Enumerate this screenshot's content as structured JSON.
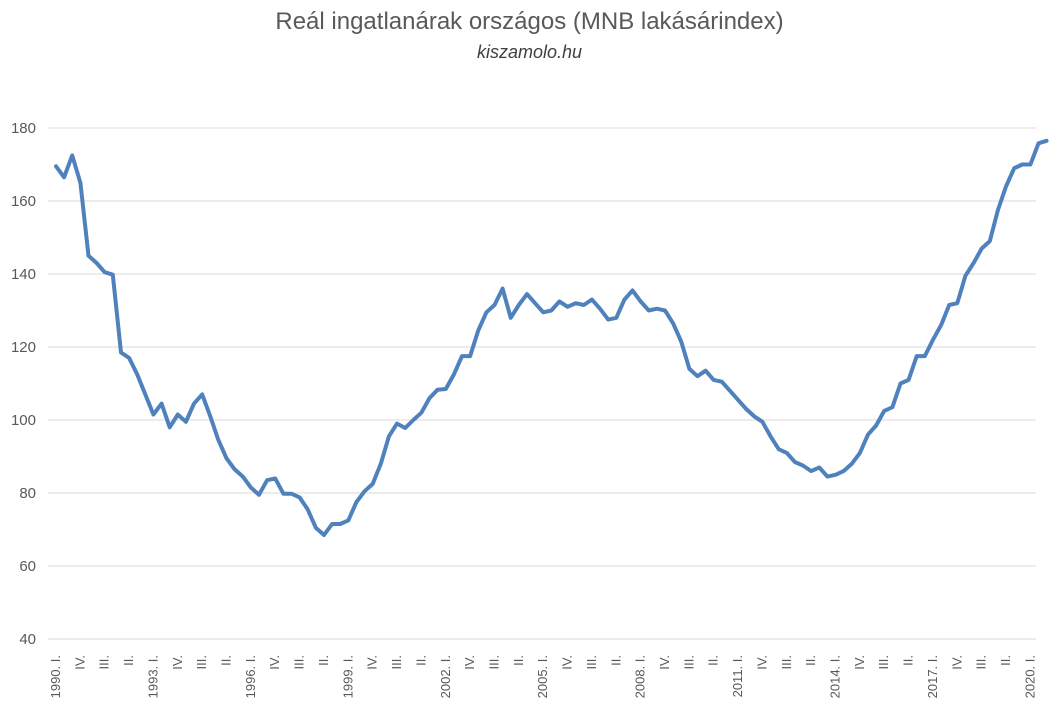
{
  "title": "Reál ingatlanárak országos (MNB lakásárindex)",
  "subtitle": "kiszamolo.hu",
  "chart_data": {
    "type": "line",
    "ylim": [
      40,
      180
    ],
    "yticks": [
      40,
      60,
      80,
      100,
      120,
      140,
      160,
      180
    ],
    "grid": true,
    "line_color": "#4F81BD",
    "grid_color": "#D9D9D9",
    "x_tick_labels": [
      "1990. I.",
      "IV.",
      "III.",
      "II.",
      "1993. I.",
      "IV.",
      "III.",
      "II.",
      "1996. I.",
      "IV.",
      "III.",
      "II.",
      "1999. I.",
      "IV.",
      "III.",
      "II.",
      "2002. I.",
      "IV.",
      "III.",
      "II.",
      "2005. I.",
      "IV.",
      "III.",
      "II.",
      "2008. I.",
      "IV.",
      "III.",
      "II.",
      "2011. I.",
      "IV.",
      "III.",
      "II.",
      "2014. I.",
      "IV.",
      "III.",
      "II.",
      "2017. I.",
      "IV.",
      "III.",
      "II.",
      "2020. I."
    ],
    "series": [
      {
        "values": [
          169.5,
          166.5,
          172.5,
          165.0,
          145.0,
          143.0,
          140.5,
          139.8,
          118.5,
          117.0,
          112.5,
          107.0,
          101.5,
          104.5,
          98.0,
          101.5,
          99.5,
          104.5,
          107.0,
          101.0,
          94.5,
          89.5,
          86.5,
          84.5,
          81.5,
          79.5,
          83.5,
          84.0,
          79.8,
          79.8,
          78.8,
          75.5,
          70.5,
          68.5,
          71.5,
          71.5,
          72.5,
          77.5,
          80.5,
          82.5,
          88.0,
          95.5,
          99.0,
          97.8,
          100.0,
          102.0,
          106.0,
          108.3,
          108.5,
          112.5,
          117.5,
          117.5,
          124.5,
          129.5,
          131.5,
          136.0,
          128.0,
          131.5,
          134.5,
          132.0,
          129.5,
          130.0,
          132.5,
          131.0,
          132.0,
          131.5,
          133.0,
          130.5,
          127.5,
          128.0,
          133.0,
          135.5,
          132.5,
          130.0,
          130.5,
          130.0,
          126.5,
          121.5,
          114.0,
          112.0,
          113.5,
          111.0,
          110.5,
          108.0,
          105.5,
          103.0,
          101.0,
          99.5,
          95.5,
          92.0,
          91.0,
          88.5,
          87.5,
          86.0,
          87.0,
          84.5,
          85.0,
          86.0,
          88.0,
          91.0,
          96.0,
          98.5,
          102.5,
          103.5,
          110.0,
          111.0,
          117.5,
          117.5,
          122.0,
          126.0,
          131.5,
          132.0,
          139.5,
          143.0,
          147.0,
          149.0,
          157.5,
          164.0,
          169.0,
          170.0,
          170.0,
          175.8,
          176.5
        ]
      }
    ]
  }
}
